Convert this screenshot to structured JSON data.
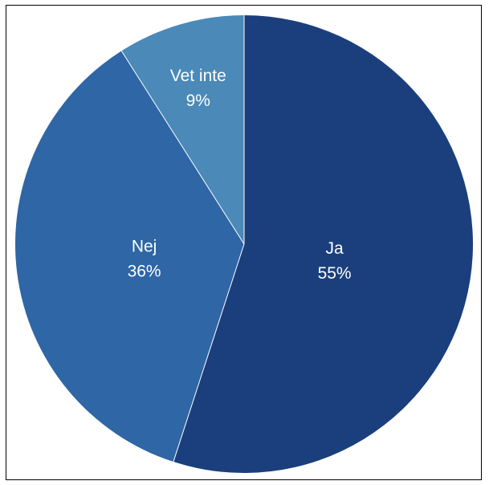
{
  "chart_data": {
    "type": "pie",
    "title": "",
    "slices": [
      {
        "label": "Ja",
        "value": 55,
        "value_label": "55%",
        "color": "#1b3f7c"
      },
      {
        "label": "Nej",
        "value": 36,
        "value_label": "36%",
        "color": "#2e66a6"
      },
      {
        "label": "Vet inte",
        "value": 9,
        "value_label": "9%",
        "color": "#4a89b8"
      }
    ],
    "start": "top",
    "direction": "clockwise",
    "legend": "none",
    "labels_inside": true
  }
}
